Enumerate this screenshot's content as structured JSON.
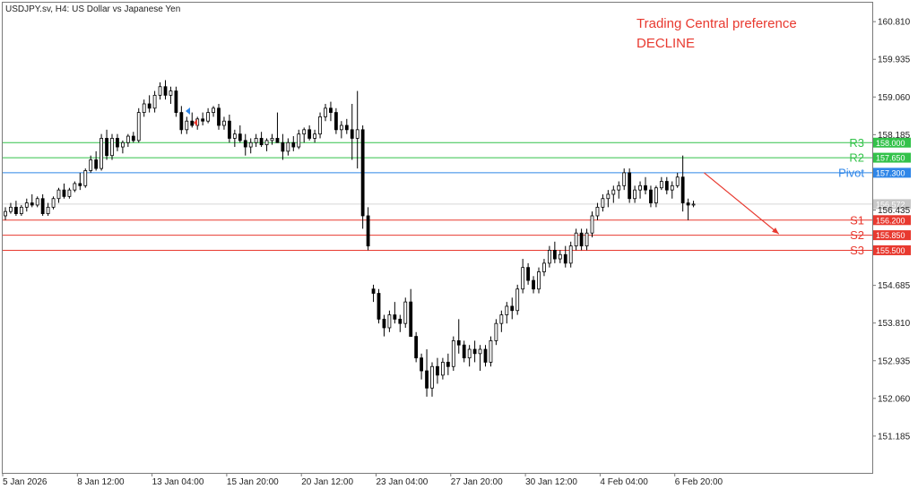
{
  "header": {
    "title": "USDJPY.sv, H4:  US Dollar vs Japanese Yen"
  },
  "annotation": {
    "line1": "Trading Central preference",
    "line2": "DECLINE",
    "color": "#e8392f"
  },
  "colors": {
    "resistance": "#33c24a",
    "pivot": "#2f86e8",
    "support": "#e8392f",
    "candle": "#000000",
    "current_price_tag": "#c8c8c8"
  },
  "chart_data": {
    "type": "candlestick",
    "symbol": "USDJPY.sv",
    "timeframe": "H4",
    "ylim": [
      150.33,
      161.25
    ],
    "y_ticks": [
      "160.810",
      "159.935",
      "159.060",
      "158.185",
      "156.435",
      "154.685",
      "153.810",
      "152.935",
      "152.060",
      "151.185"
    ],
    "x_ticks": [
      "5 Jan 2026",
      "8 Jan 12:00",
      "13 Jan 04:00",
      "15 Jan 20:00",
      "20 Jan 12:00",
      "23 Jan 04:00",
      "27 Jan 20:00",
      "30 Jan 12:00",
      "4 Feb 04:00",
      "6 Feb 20:00"
    ],
    "levels": [
      {
        "name": "R3",
        "value": 158.0,
        "label": "158.000",
        "kind": "resistance"
      },
      {
        "name": "R2",
        "value": 157.65,
        "label": "157.650",
        "kind": "resistance"
      },
      {
        "name": "Pivot",
        "value": 157.3,
        "label": "157.300",
        "kind": "pivot"
      },
      {
        "name": "S1",
        "value": 156.2,
        "label": "156.200",
        "kind": "support"
      },
      {
        "name": "S2",
        "value": 155.85,
        "label": "155.850",
        "kind": "support"
      },
      {
        "name": "S3",
        "value": 155.5,
        "label": "155.500",
        "kind": "support"
      }
    ],
    "current_price": {
      "value": 156.572,
      "label": "156.572"
    },
    "arrow": {
      "from": {
        "bar": 131,
        "price": 157.3
      },
      "to": {
        "bar": 145,
        "price": 155.88
      }
    },
    "candles": [
      [
        156.3,
        156.5,
        156.2,
        156.4
      ],
      [
        156.4,
        156.6,
        156.35,
        156.5
      ],
      [
        156.5,
        156.65,
        156.3,
        156.35
      ],
      [
        156.35,
        156.55,
        156.3,
        156.5
      ],
      [
        156.5,
        156.7,
        156.4,
        156.6
      ],
      [
        156.6,
        156.8,
        156.5,
        156.55
      ],
      [
        156.55,
        156.75,
        156.5,
        156.7
      ],
      [
        156.7,
        156.8,
        156.3,
        156.35
      ],
      [
        156.35,
        156.6,
        156.3,
        156.5
      ],
      [
        156.5,
        156.75,
        156.45,
        156.7
      ],
      [
        156.7,
        156.95,
        156.6,
        156.9
      ],
      [
        156.9,
        157.05,
        156.7,
        156.75
      ],
      [
        156.75,
        156.95,
        156.7,
        156.9
      ],
      [
        156.9,
        157.1,
        156.85,
        157.05
      ],
      [
        157.05,
        157.3,
        156.9,
        157.0
      ],
      [
        157.0,
        157.4,
        156.95,
        157.35
      ],
      [
        157.35,
        157.7,
        157.3,
        157.6
      ],
      [
        157.6,
        157.8,
        157.35,
        157.4
      ],
      [
        157.4,
        158.2,
        157.35,
        158.1
      ],
      [
        158.1,
        158.3,
        157.6,
        157.7
      ],
      [
        157.7,
        158.2,
        157.6,
        158.1
      ],
      [
        158.1,
        158.2,
        157.8,
        157.9
      ],
      [
        157.9,
        158.05,
        157.75,
        158.0
      ],
      [
        158.0,
        158.2,
        157.9,
        158.15
      ],
      [
        158.15,
        158.25,
        158.0,
        158.05
      ],
      [
        158.05,
        158.8,
        158.0,
        158.7
      ],
      [
        158.7,
        159.0,
        158.6,
        158.9
      ],
      [
        158.9,
        159.1,
        158.7,
        158.8
      ],
      [
        158.8,
        159.2,
        158.7,
        159.1
      ],
      [
        159.1,
        159.4,
        159.0,
        159.3
      ],
      [
        159.3,
        159.45,
        159.0,
        159.1
      ],
      [
        159.1,
        159.3,
        158.9,
        159.2
      ],
      [
        159.2,
        159.3,
        158.6,
        158.7
      ],
      [
        158.7,
        158.85,
        158.2,
        158.3
      ],
      [
        158.3,
        158.6,
        158.2,
        158.5
      ],
      [
        158.5,
        158.7,
        158.35,
        158.4
      ],
      [
        158.4,
        158.6,
        158.3,
        158.55
      ],
      [
        158.55,
        158.7,
        158.4,
        158.5
      ],
      [
        158.5,
        158.8,
        158.45,
        158.7
      ],
      [
        158.7,
        158.85,
        158.6,
        158.8
      ],
      [
        158.8,
        158.9,
        158.3,
        158.4
      ],
      [
        158.4,
        158.6,
        158.3,
        158.5
      ],
      [
        158.5,
        158.65,
        158.0,
        158.1
      ],
      [
        158.1,
        158.3,
        157.9,
        158.2
      ],
      [
        158.2,
        158.4,
        158.0,
        158.05
      ],
      [
        158.05,
        158.2,
        157.7,
        157.9
      ],
      [
        157.9,
        158.1,
        157.75,
        158.0
      ],
      [
        158.0,
        158.2,
        157.9,
        158.1
      ],
      [
        158.1,
        158.25,
        157.9,
        157.95
      ],
      [
        157.95,
        158.1,
        157.8,
        158.05
      ],
      [
        158.05,
        158.2,
        157.95,
        158.1
      ],
      [
        158.1,
        158.7,
        158.0,
        158.0
      ],
      [
        158.0,
        158.2,
        157.6,
        157.8
      ],
      [
        157.8,
        158.1,
        157.7,
        158.0
      ],
      [
        158.0,
        158.15,
        157.8,
        157.9
      ],
      [
        157.9,
        158.3,
        157.85,
        158.2
      ],
      [
        158.2,
        158.35,
        158.0,
        158.3
      ],
      [
        158.3,
        158.4,
        158.05,
        158.1
      ],
      [
        158.1,
        158.3,
        158.0,
        158.2
      ],
      [
        158.2,
        158.7,
        158.1,
        158.6
      ],
      [
        158.6,
        158.9,
        158.5,
        158.8
      ],
      [
        158.8,
        158.95,
        158.5,
        158.7
      ],
      [
        158.7,
        158.8,
        158.2,
        158.3
      ],
      [
        158.3,
        158.5,
        158.1,
        158.4
      ],
      [
        158.4,
        158.55,
        158.2,
        158.3
      ],
      [
        158.3,
        158.9,
        157.6,
        158.1
      ],
      [
        158.1,
        159.2,
        157.4,
        158.3
      ],
      [
        158.3,
        158.4,
        156.0,
        156.3
      ],
      [
        156.3,
        156.5,
        155.5,
        155.6
      ],
      [
        154.6,
        154.7,
        154.3,
        154.5
      ],
      [
        154.5,
        154.6,
        153.8,
        153.9
      ],
      [
        153.9,
        154.0,
        153.5,
        153.7
      ],
      [
        153.7,
        154.1,
        153.6,
        154.0
      ],
      [
        154.0,
        154.3,
        153.8,
        153.9
      ],
      [
        153.9,
        154.0,
        153.6,
        153.8
      ],
      [
        153.8,
        154.4,
        153.7,
        154.3
      ],
      [
        154.3,
        154.6,
        153.5,
        153.5
      ],
      [
        153.5,
        153.6,
        152.9,
        153.0
      ],
      [
        153.0,
        153.1,
        152.5,
        152.7
      ],
      [
        152.7,
        153.2,
        152.1,
        152.3
      ],
      [
        152.3,
        152.9,
        152.1,
        152.8
      ],
      [
        152.8,
        153.0,
        152.4,
        152.6
      ],
      [
        152.6,
        153.0,
        152.5,
        152.9
      ],
      [
        152.9,
        153.1,
        152.6,
        152.8
      ],
      [
        152.8,
        153.5,
        152.7,
        153.4
      ],
      [
        153.4,
        153.9,
        153.1,
        153.3
      ],
      [
        153.3,
        153.4,
        152.9,
        153.0
      ],
      [
        153.0,
        153.3,
        152.8,
        153.2
      ],
      [
        153.2,
        153.4,
        152.9,
        153.1
      ],
      [
        153.1,
        153.3,
        152.7,
        153.2
      ],
      [
        153.2,
        153.3,
        152.8,
        152.9
      ],
      [
        152.9,
        153.5,
        152.8,
        153.4
      ],
      [
        153.4,
        153.9,
        153.3,
        153.8
      ],
      [
        153.8,
        154.1,
        153.6,
        154.0
      ],
      [
        154.0,
        154.3,
        153.8,
        154.2
      ],
      [
        154.2,
        154.4,
        153.9,
        154.1
      ],
      [
        154.1,
        154.7,
        154.0,
        154.6
      ],
      [
        154.6,
        155.3,
        154.5,
        155.1
      ],
      [
        155.1,
        155.2,
        154.7,
        154.8
      ],
      [
        154.8,
        154.9,
        154.5,
        154.6
      ],
      [
        154.6,
        155.1,
        154.5,
        155.0
      ],
      [
        155.0,
        155.3,
        154.9,
        155.2
      ],
      [
        155.2,
        155.6,
        155.1,
        155.5
      ],
      [
        155.5,
        155.7,
        155.2,
        155.3
      ],
      [
        155.3,
        155.5,
        155.2,
        155.4
      ],
      [
        155.4,
        155.6,
        155.1,
        155.2
      ],
      [
        155.2,
        155.7,
        155.1,
        155.6
      ],
      [
        155.6,
        156.0,
        155.5,
        155.9
      ],
      [
        155.9,
        156.0,
        155.5,
        155.6
      ],
      [
        155.6,
        156.0,
        155.5,
        155.9
      ],
      [
        155.9,
        156.4,
        155.8,
        156.3
      ],
      [
        156.3,
        156.6,
        156.2,
        156.5
      ],
      [
        156.5,
        156.8,
        156.4,
        156.7
      ],
      [
        156.7,
        156.9,
        156.5,
        156.8
      ],
      [
        156.8,
        157.0,
        156.6,
        156.9
      ],
      [
        156.9,
        157.1,
        156.7,
        157.0
      ],
      [
        157.0,
        157.4,
        156.9,
        157.3
      ],
      [
        157.3,
        157.4,
        156.6,
        156.7
      ],
      [
        156.7,
        157.0,
        156.6,
        156.9
      ],
      [
        156.9,
        157.1,
        156.7,
        157.0
      ],
      [
        157.0,
        157.2,
        156.8,
        156.9
      ],
      [
        156.9,
        157.0,
        156.5,
        156.6
      ],
      [
        156.6,
        157.0,
        156.5,
        156.95
      ],
      [
        156.95,
        157.2,
        156.9,
        157.1
      ],
      [
        157.1,
        157.2,
        156.8,
        156.9
      ],
      [
        156.9,
        157.1,
        156.7,
        157.0
      ],
      [
        157.0,
        157.3,
        156.95,
        157.2
      ],
      [
        157.2,
        157.7,
        156.4,
        156.6
      ],
      [
        156.6,
        156.7,
        156.2,
        156.55
      ],
      [
        156.55,
        156.65,
        156.5,
        156.572
      ]
    ]
  }
}
